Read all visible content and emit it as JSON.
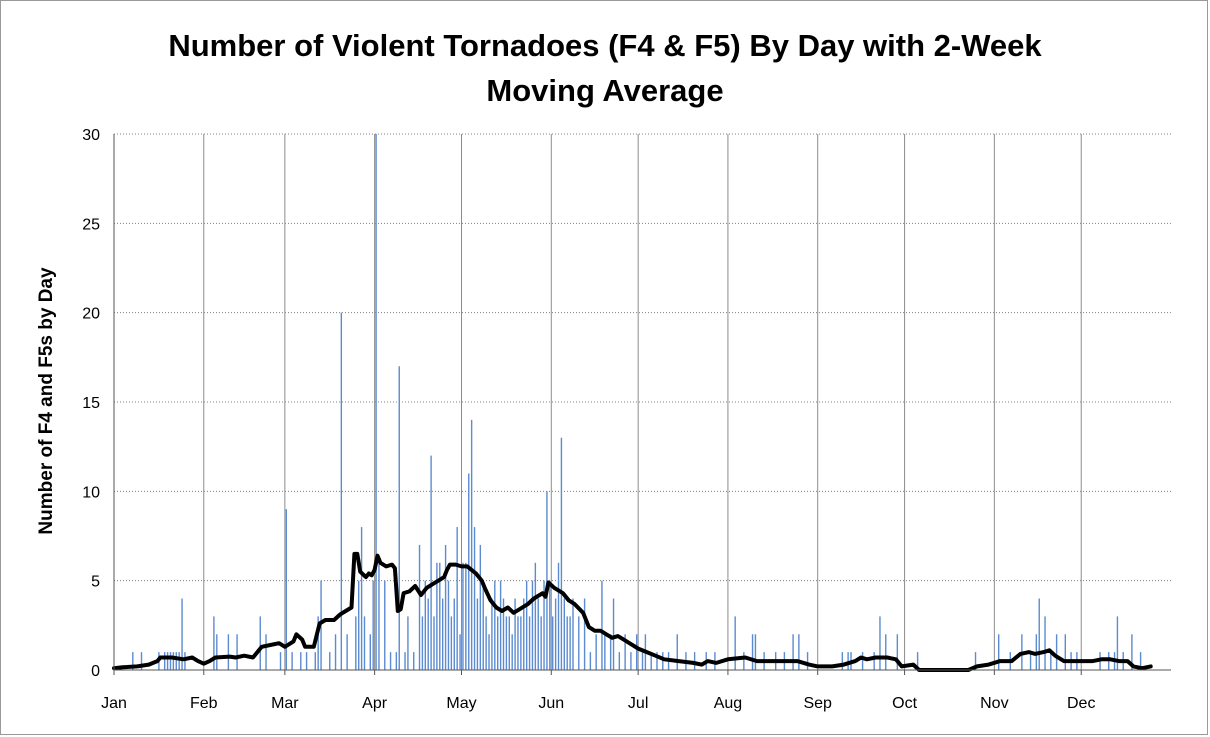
{
  "chart_data": {
    "type": "bar",
    "title_lines": [
      "Number of Violent Tornadoes (F4 & F5) By Day with 2-Week",
      "Moving Average"
    ],
    "xlabel": "",
    "ylabel": "Number of F4 and F5s by Day",
    "ylim": [
      0,
      30
    ],
    "yticks": [
      0,
      5,
      10,
      15,
      20,
      25,
      30
    ],
    "xlim": [
      0,
      365
    ],
    "x_unit": "day of year",
    "months": [
      {
        "label": "Jan",
        "day": 0
      },
      {
        "label": "Feb",
        "day": 31
      },
      {
        "label": "Mar",
        "day": 59
      },
      {
        "label": "Apr",
        "day": 90
      },
      {
        "label": "May",
        "day": 120
      },
      {
        "label": "Jun",
        "day": 151
      },
      {
        "label": "Jul",
        "day": 181
      },
      {
        "label": "Aug",
        "day": 212
      },
      {
        "label": "Sep",
        "day": 243
      },
      {
        "label": "Oct",
        "day": 273
      },
      {
        "label": "Nov",
        "day": 304
      },
      {
        "label": "Dec",
        "day": 334
      }
    ],
    "grid": {
      "horizontal": "dotted",
      "vertical": "solid at month starts"
    },
    "legend": "none",
    "colors": {
      "bars": "#5b8bd0",
      "average": "#000000",
      "grid": "#888888"
    },
    "daily_counts": [
      {
        "day": 6,
        "value": 1
      },
      {
        "day": 9,
        "value": 1
      },
      {
        "day": 15,
        "value": 1
      },
      {
        "day": 17,
        "value": 1
      },
      {
        "day": 18,
        "value": 1
      },
      {
        "day": 19,
        "value": 1
      },
      {
        "day": 20,
        "value": 1
      },
      {
        "day": 21,
        "value": 1
      },
      {
        "day": 22,
        "value": 1
      },
      {
        "day": 23,
        "value": 4
      },
      {
        "day": 24,
        "value": 1
      },
      {
        "day": 34,
        "value": 3
      },
      {
        "day": 35,
        "value": 2
      },
      {
        "day": 39,
        "value": 2
      },
      {
        "day": 42,
        "value": 2
      },
      {
        "day": 50,
        "value": 3
      },
      {
        "day": 52,
        "value": 2
      },
      {
        "day": 57,
        "value": 1
      },
      {
        "day": 59,
        "value": 9
      },
      {
        "day": 61,
        "value": 1
      },
      {
        "day": 64,
        "value": 1
      },
      {
        "day": 66,
        "value": 1
      },
      {
        "day": 69,
        "value": 1
      },
      {
        "day": 70,
        "value": 3
      },
      {
        "day": 71,
        "value": 5
      },
      {
        "day": 74,
        "value": 1
      },
      {
        "day": 76,
        "value": 2
      },
      {
        "day": 78,
        "value": 20
      },
      {
        "day": 80,
        "value": 2
      },
      {
        "day": 83,
        "value": 3
      },
      {
        "day": 84,
        "value": 5
      },
      {
        "day": 85,
        "value": 8
      },
      {
        "day": 86,
        "value": 3
      },
      {
        "day": 88,
        "value": 2
      },
      {
        "day": 89,
        "value": 5
      },
      {
        "day": 90,
        "value": 30
      },
      {
        "day": 91,
        "value": 6
      },
      {
        "day": 93,
        "value": 5
      },
      {
        "day": 95,
        "value": 1
      },
      {
        "day": 97,
        "value": 1
      },
      {
        "day": 98,
        "value": 17
      },
      {
        "day": 100,
        "value": 1
      },
      {
        "day": 101,
        "value": 3
      },
      {
        "day": 103,
        "value": 1
      },
      {
        "day": 105,
        "value": 7
      },
      {
        "day": 106,
        "value": 3
      },
      {
        "day": 107,
        "value": 5
      },
      {
        "day": 108,
        "value": 4
      },
      {
        "day": 109,
        "value": 12
      },
      {
        "day": 110,
        "value": 3
      },
      {
        "day": 111,
        "value": 6
      },
      {
        "day": 112,
        "value": 6
      },
      {
        "day": 113,
        "value": 4
      },
      {
        "day": 114,
        "value": 7
      },
      {
        "day": 115,
        "value": 5
      },
      {
        "day": 116,
        "value": 3
      },
      {
        "day": 117,
        "value": 4
      },
      {
        "day": 118,
        "value": 8
      },
      {
        "day": 119,
        "value": 2
      },
      {
        "day": 120,
        "value": 6
      },
      {
        "day": 121,
        "value": 6
      },
      {
        "day": 122,
        "value": 11
      },
      {
        "day": 123,
        "value": 14
      },
      {
        "day": 124,
        "value": 8
      },
      {
        "day": 125,
        "value": 4
      },
      {
        "day": 126,
        "value": 7
      },
      {
        "day": 127,
        "value": 5
      },
      {
        "day": 128,
        "value": 3
      },
      {
        "day": 129,
        "value": 2
      },
      {
        "day": 130,
        "value": 4
      },
      {
        "day": 131,
        "value": 5
      },
      {
        "day": 132,
        "value": 3
      },
      {
        "day": 133,
        "value": 5
      },
      {
        "day": 134,
        "value": 4
      },
      {
        "day": 135,
        "value": 3
      },
      {
        "day": 136,
        "value": 3
      },
      {
        "day": 137,
        "value": 2
      },
      {
        "day": 138,
        "value": 4
      },
      {
        "day": 139,
        "value": 3
      },
      {
        "day": 140,
        "value": 3
      },
      {
        "day": 141,
        "value": 4
      },
      {
        "day": 142,
        "value": 5
      },
      {
        "day": 143,
        "value": 3
      },
      {
        "day": 144,
        "value": 5
      },
      {
        "day": 145,
        "value": 6
      },
      {
        "day": 146,
        "value": 4
      },
      {
        "day": 147,
        "value": 3
      },
      {
        "day": 148,
        "value": 5
      },
      {
        "day": 149,
        "value": 10
      },
      {
        "day": 150,
        "value": 5
      },
      {
        "day": 151,
        "value": 3
      },
      {
        "day": 152,
        "value": 4
      },
      {
        "day": 153,
        "value": 6
      },
      {
        "day": 154,
        "value": 13
      },
      {
        "day": 155,
        "value": 4
      },
      {
        "day": 156,
        "value": 3
      },
      {
        "day": 157,
        "value": 3
      },
      {
        "day": 158,
        "value": 4
      },
      {
        "day": 160,
        "value": 3
      },
      {
        "day": 162,
        "value": 4
      },
      {
        "day": 164,
        "value": 1
      },
      {
        "day": 166,
        "value": 2
      },
      {
        "day": 168,
        "value": 5
      },
      {
        "day": 169,
        "value": 2
      },
      {
        "day": 171,
        "value": 2
      },
      {
        "day": 172,
        "value": 4
      },
      {
        "day": 174,
        "value": 1
      },
      {
        "day": 176,
        "value": 2
      },
      {
        "day": 178,
        "value": 1
      },
      {
        "day": 180,
        "value": 2
      },
      {
        "day": 182,
        "value": 1
      },
      {
        "day": 183,
        "value": 2
      },
      {
        "day": 185,
        "value": 1
      },
      {
        "day": 187,
        "value": 1
      },
      {
        "day": 189,
        "value": 1
      },
      {
        "day": 191,
        "value": 1
      },
      {
        "day": 194,
        "value": 2
      },
      {
        "day": 197,
        "value": 1
      },
      {
        "day": 200,
        "value": 1
      },
      {
        "day": 204,
        "value": 1
      },
      {
        "day": 207,
        "value": 1
      },
      {
        "day": 214,
        "value": 3
      },
      {
        "day": 217,
        "value": 1
      },
      {
        "day": 220,
        "value": 2
      },
      {
        "day": 221,
        "value": 2
      },
      {
        "day": 224,
        "value": 1
      },
      {
        "day": 228,
        "value": 1
      },
      {
        "day": 231,
        "value": 1
      },
      {
        "day": 234,
        "value": 2
      },
      {
        "day": 236,
        "value": 2
      },
      {
        "day": 239,
        "value": 1
      },
      {
        "day": 251,
        "value": 1
      },
      {
        "day": 253,
        "value": 1
      },
      {
        "day": 254,
        "value": 1
      },
      {
        "day": 258,
        "value": 1
      },
      {
        "day": 262,
        "value": 1
      },
      {
        "day": 264,
        "value": 3
      },
      {
        "day": 266,
        "value": 2
      },
      {
        "day": 270,
        "value": 2
      },
      {
        "day": 277,
        "value": 1
      },
      {
        "day": 297,
        "value": 1
      },
      {
        "day": 305,
        "value": 2
      },
      {
        "day": 309,
        "value": 1
      },
      {
        "day": 313,
        "value": 2
      },
      {
        "day": 316,
        "value": 1
      },
      {
        "day": 318,
        "value": 2
      },
      {
        "day": 319,
        "value": 4
      },
      {
        "day": 321,
        "value": 3
      },
      {
        "day": 323,
        "value": 1
      },
      {
        "day": 325,
        "value": 2
      },
      {
        "day": 328,
        "value": 2
      },
      {
        "day": 330,
        "value": 1
      },
      {
        "day": 332,
        "value": 1
      },
      {
        "day": 340,
        "value": 1
      },
      {
        "day": 343,
        "value": 1
      },
      {
        "day": 345,
        "value": 1
      },
      {
        "day": 346,
        "value": 3
      },
      {
        "day": 348,
        "value": 1
      },
      {
        "day": 351,
        "value": 2
      },
      {
        "day": 354,
        "value": 1
      }
    ],
    "moving_average": [
      {
        "day": 0,
        "value": 0.1
      },
      {
        "day": 3,
        "value": 0.15
      },
      {
        "day": 8,
        "value": 0.2
      },
      {
        "day": 12,
        "value": 0.3
      },
      {
        "day": 15,
        "value": 0.5
      },
      {
        "day": 16,
        "value": 0.7
      },
      {
        "day": 20,
        "value": 0.7
      },
      {
        "day": 24,
        "value": 0.6
      },
      {
        "day": 27,
        "value": 0.7
      },
      {
        "day": 29,
        "value": 0.5
      },
      {
        "day": 31,
        "value": 0.35
      },
      {
        "day": 33,
        "value": 0.5
      },
      {
        "day": 35,
        "value": 0.7
      },
      {
        "day": 40,
        "value": 0.75
      },
      {
        "day": 42,
        "value": 0.7
      },
      {
        "day": 45,
        "value": 0.8
      },
      {
        "day": 48,
        "value": 0.7
      },
      {
        "day": 51,
        "value": 1.3
      },
      {
        "day": 54,
        "value": 1.4
      },
      {
        "day": 57,
        "value": 1.5
      },
      {
        "day": 59,
        "value": 1.3
      },
      {
        "day": 62,
        "value": 1.6
      },
      {
        "day": 63,
        "value": 2.0
      },
      {
        "day": 65,
        "value": 1.7
      },
      {
        "day": 66,
        "value": 1.3
      },
      {
        "day": 69,
        "value": 1.3
      },
      {
        "day": 71,
        "value": 2.6
      },
      {
        "day": 73,
        "value": 2.8
      },
      {
        "day": 76,
        "value": 2.8
      },
      {
        "day": 78,
        "value": 3.1
      },
      {
        "day": 80,
        "value": 3.3
      },
      {
        "day": 82,
        "value": 3.5
      },
      {
        "day": 83,
        "value": 6.5
      },
      {
        "day": 84,
        "value": 6.5
      },
      {
        "day": 85,
        "value": 5.5
      },
      {
        "day": 87,
        "value": 5.2
      },
      {
        "day": 88,
        "value": 5.4
      },
      {
        "day": 89,
        "value": 5.3
      },
      {
        "day": 90,
        "value": 5.6
      },
      {
        "day": 91,
        "value": 6.4
      },
      {
        "day": 92,
        "value": 6.0
      },
      {
        "day": 94,
        "value": 5.8
      },
      {
        "day": 96,
        "value": 5.9
      },
      {
        "day": 97,
        "value": 5.7
      },
      {
        "day": 98,
        "value": 3.3
      },
      {
        "day": 99,
        "value": 3.4
      },
      {
        "day": 100,
        "value": 4.3
      },
      {
        "day": 102,
        "value": 4.4
      },
      {
        "day": 104,
        "value": 4.7
      },
      {
        "day": 106,
        "value": 4.2
      },
      {
        "day": 108,
        "value": 4.6
      },
      {
        "day": 110,
        "value": 4.8
      },
      {
        "day": 112,
        "value": 5.0
      },
      {
        "day": 114,
        "value": 5.2
      },
      {
        "day": 115,
        "value": 5.6
      },
      {
        "day": 116,
        "value": 5.9
      },
      {
        "day": 118,
        "value": 5.9
      },
      {
        "day": 120,
        "value": 5.8
      },
      {
        "day": 122,
        "value": 5.8
      },
      {
        "day": 125,
        "value": 5.4
      },
      {
        "day": 127,
        "value": 5.0
      },
      {
        "day": 128,
        "value": 4.6
      },
      {
        "day": 130,
        "value": 3.9
      },
      {
        "day": 132,
        "value": 3.5
      },
      {
        "day": 134,
        "value": 3.3
      },
      {
        "day": 136,
        "value": 3.5
      },
      {
        "day": 138,
        "value": 3.2
      },
      {
        "day": 140,
        "value": 3.4
      },
      {
        "day": 143,
        "value": 3.7
      },
      {
        "day": 145,
        "value": 4.0
      },
      {
        "day": 148,
        "value": 4.3
      },
      {
        "day": 149,
        "value": 4.1
      },
      {
        "day": 150,
        "value": 4.9
      },
      {
        "day": 152,
        "value": 4.6
      },
      {
        "day": 155,
        "value": 4.3
      },
      {
        "day": 157,
        "value": 3.9
      },
      {
        "day": 159,
        "value": 3.7
      },
      {
        "day": 162,
        "value": 3.2
      },
      {
        "day": 164,
        "value": 2.4
      },
      {
        "day": 166,
        "value": 2.2
      },
      {
        "day": 168,
        "value": 2.2
      },
      {
        "day": 170,
        "value": 2.0
      },
      {
        "day": 172,
        "value": 1.8
      },
      {
        "day": 174,
        "value": 1.9
      },
      {
        "day": 176,
        "value": 1.7
      },
      {
        "day": 178,
        "value": 1.5
      },
      {
        "day": 181,
        "value": 1.2
      },
      {
        "day": 184,
        "value": 1.0
      },
      {
        "day": 187,
        "value": 0.8
      },
      {
        "day": 190,
        "value": 0.6
      },
      {
        "day": 195,
        "value": 0.5
      },
      {
        "day": 200,
        "value": 0.4
      },
      {
        "day": 203,
        "value": 0.3
      },
      {
        "day": 205,
        "value": 0.5
      },
      {
        "day": 208,
        "value": 0.4
      },
      {
        "day": 212,
        "value": 0.6
      },
      {
        "day": 218,
        "value": 0.7
      },
      {
        "day": 222,
        "value": 0.5
      },
      {
        "day": 228,
        "value": 0.5
      },
      {
        "day": 233,
        "value": 0.5
      },
      {
        "day": 236,
        "value": 0.5
      },
      {
        "day": 240,
        "value": 0.3
      },
      {
        "day": 243,
        "value": 0.2
      },
      {
        "day": 248,
        "value": 0.2
      },
      {
        "day": 252,
        "value": 0.3
      },
      {
        "day": 256,
        "value": 0.5
      },
      {
        "day": 258,
        "value": 0.7
      },
      {
        "day": 260,
        "value": 0.6
      },
      {
        "day": 263,
        "value": 0.7
      },
      {
        "day": 267,
        "value": 0.7
      },
      {
        "day": 270,
        "value": 0.6
      },
      {
        "day": 272,
        "value": 0.2
      },
      {
        "day": 276,
        "value": 0.3
      },
      {
        "day": 278,
        "value": 0.0
      },
      {
        "day": 295,
        "value": 0.0
      },
      {
        "day": 298,
        "value": 0.2
      },
      {
        "day": 302,
        "value": 0.3
      },
      {
        "day": 306,
        "value": 0.5
      },
      {
        "day": 310,
        "value": 0.5
      },
      {
        "day": 313,
        "value": 0.9
      },
      {
        "day": 316,
        "value": 1.0
      },
      {
        "day": 318,
        "value": 0.9
      },
      {
        "day": 321,
        "value": 1.0
      },
      {
        "day": 323,
        "value": 1.1
      },
      {
        "day": 325,
        "value": 0.8
      },
      {
        "day": 328,
        "value": 0.5
      },
      {
        "day": 331,
        "value": 0.5
      },
      {
        "day": 334,
        "value": 0.5
      },
      {
        "day": 338,
        "value": 0.5
      },
      {
        "day": 341,
        "value": 0.6
      },
      {
        "day": 344,
        "value": 0.6
      },
      {
        "day": 347,
        "value": 0.5
      },
      {
        "day": 350,
        "value": 0.5
      },
      {
        "day": 352,
        "value": 0.2
      },
      {
        "day": 355,
        "value": 0.1
      },
      {
        "day": 358,
        "value": 0.2
      }
    ]
  }
}
